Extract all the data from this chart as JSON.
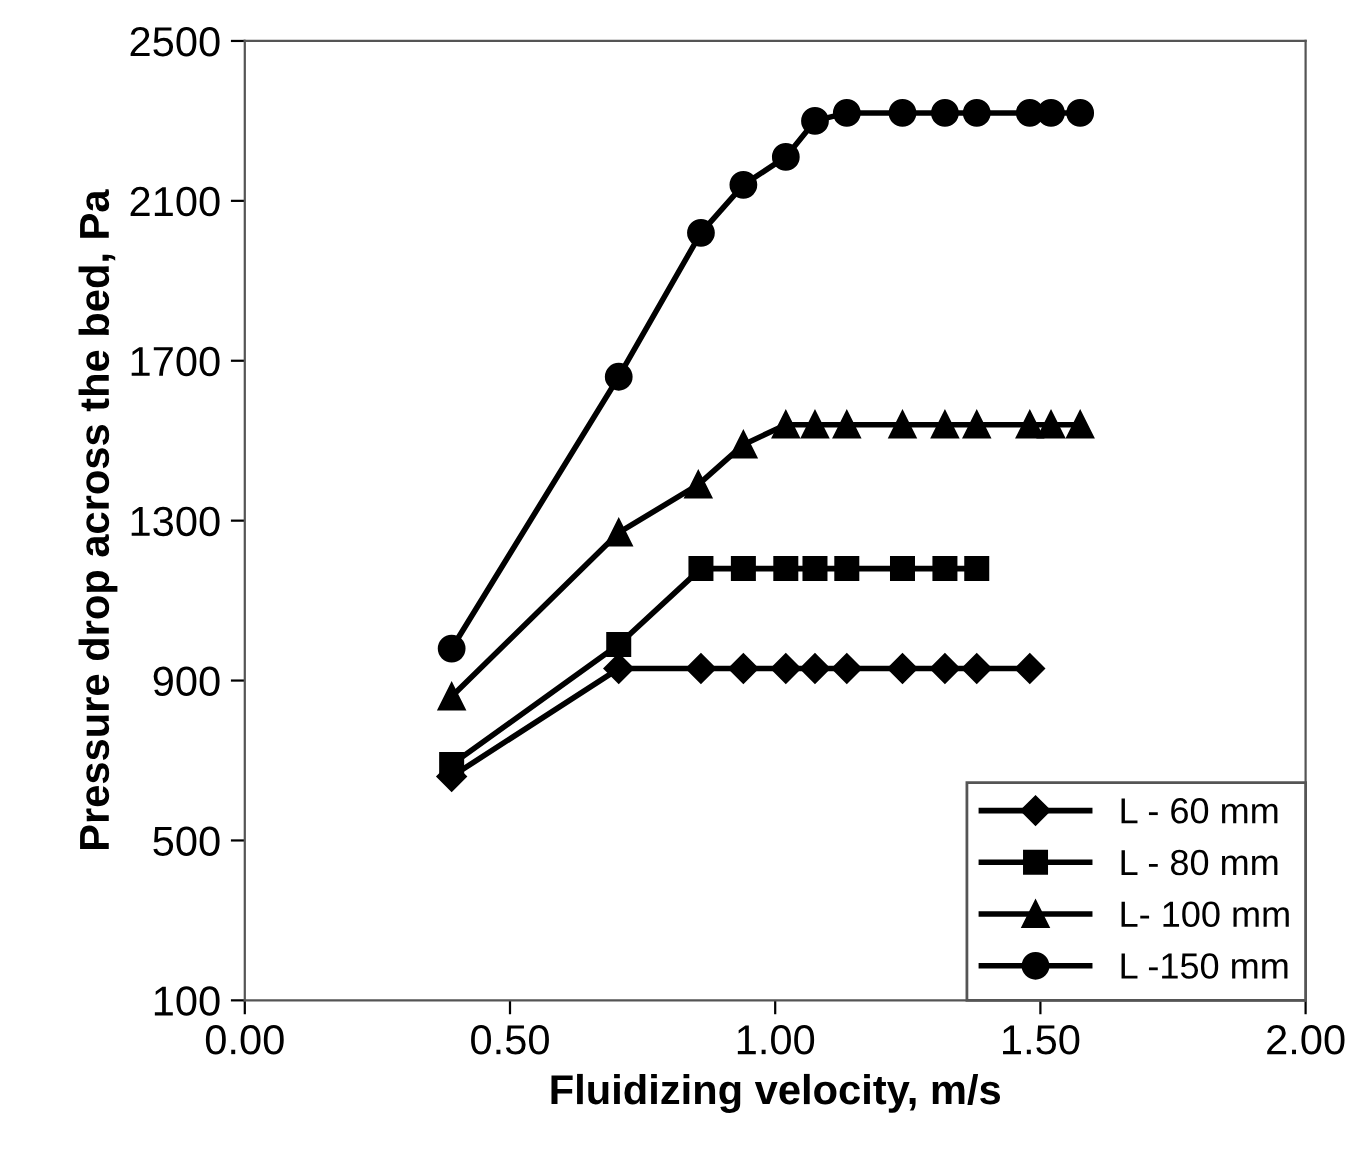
{
  "chart_data": {
    "type": "line",
    "xlabel": "Fluidizing velocity, m/s",
    "ylabel": "Pressure drop across the bed, Pa",
    "series": [
      {
        "name": "L - 60 mm",
        "color": "#000000",
        "marker": "diamond",
        "x": [
          0.39,
          0.705,
          0.86,
          0.94,
          1.02,
          1.075,
          1.135,
          1.24,
          1.32,
          1.38,
          1.48
        ],
        "values": [
          660,
          930,
          930,
          930,
          930,
          930,
          930,
          930,
          930,
          930,
          930
        ]
      },
      {
        "name": "L - 80 mm",
        "color": "#000000",
        "marker": "square",
        "x": [
          0.39,
          0.705,
          0.86,
          0.94,
          1.02,
          1.075,
          1.135,
          1.24,
          1.32,
          1.38
        ],
        "values": [
          690,
          990,
          1180,
          1180,
          1180,
          1180,
          1180,
          1180,
          1180,
          1180
        ]
      },
      {
        "name": "L- 100 mm",
        "color": "#000000",
        "marker": "triangle",
        "x": [
          0.39,
          0.705,
          0.855,
          0.94,
          1.02,
          1.075,
          1.135,
          1.24,
          1.32,
          1.38,
          1.48,
          1.52,
          1.575
        ],
        "values": [
          860,
          1270,
          1390,
          1490,
          1540,
          1540,
          1540,
          1540,
          1540,
          1540,
          1540,
          1540,
          1540
        ]
      },
      {
        "name": "L -150 mm",
        "color": "#000000",
        "marker": "circle",
        "x": [
          0.39,
          0.705,
          0.86,
          0.94,
          1.02,
          1.075,
          1.135,
          1.24,
          1.32,
          1.38,
          1.48,
          1.52,
          1.575
        ],
        "values": [
          980,
          1660,
          2020,
          2140,
          2210,
          2300,
          2320,
          2320,
          2320,
          2320,
          2320,
          2320,
          2320
        ]
      }
    ],
    "xlim": [
      0,
      2
    ],
    "xticks": [
      {
        "value": 0,
        "label": "0.00"
      },
      {
        "value": 0.5,
        "label": "0.50"
      },
      {
        "value": 1,
        "label": "1.00"
      },
      {
        "value": 1.5,
        "label": "1.50"
      },
      {
        "value": 2,
        "label": "2.00"
      }
    ],
    "ylim": [
      100,
      2500
    ],
    "yticks": [
      100,
      500,
      900,
      1300,
      1700,
      2100,
      2500
    ],
    "grid": false,
    "legend": "bottom right",
    "line_style": "solid"
  }
}
